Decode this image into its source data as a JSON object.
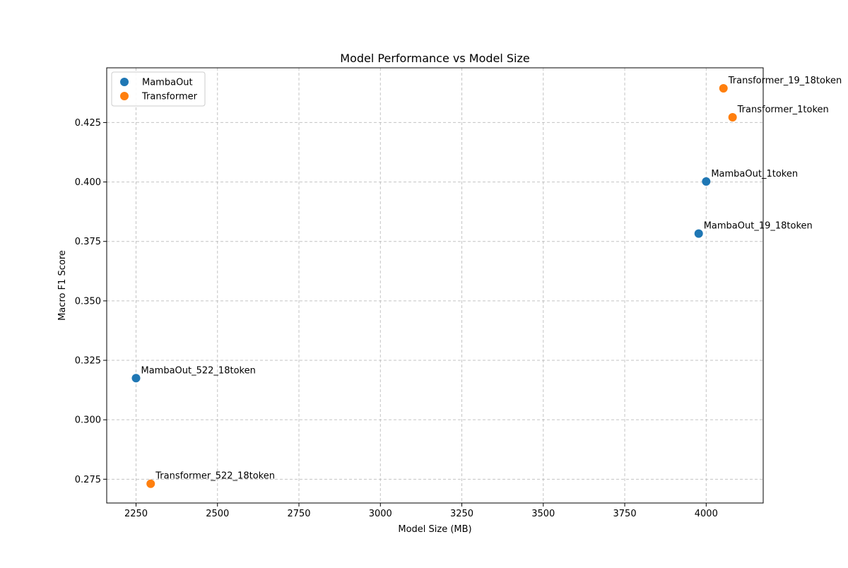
{
  "chart_data": {
    "type": "scatter",
    "title": "Model Performance vs Model Size",
    "xlabel": "Model Size (MB)",
    "ylabel": "Macro F1 Score",
    "xlim": [
      2160,
      4175
    ],
    "ylim": [
      0.265,
      0.448
    ],
    "xticks": [
      2250,
      2500,
      2750,
      3000,
      3250,
      3500,
      3750,
      4000
    ],
    "yticks": [
      0.275,
      0.3,
      0.325,
      0.35,
      0.375,
      0.4,
      0.425
    ],
    "xtick_labels": [
      "2250",
      "2500",
      "2750",
      "3000",
      "3250",
      "3500",
      "3750",
      "4000"
    ],
    "ytick_labels": [
      "0.275",
      "0.300",
      "0.325",
      "0.350",
      "0.375",
      "0.400",
      "0.425"
    ],
    "grid": true,
    "legend_position": "top-left",
    "series": [
      {
        "name": "MambaOut",
        "color": "#1f77b4",
        "points": [
          {
            "x": 2250,
            "y": 0.3175,
            "label": "MambaOut_522_18token"
          },
          {
            "x": 4000,
            "y": 0.4002,
            "label": "MambaOut_1token"
          },
          {
            "x": 3977,
            "y": 0.3783,
            "label": "MambaOut_19_18token"
          }
        ]
      },
      {
        "name": "Transformer",
        "color": "#ff7f0e",
        "points": [
          {
            "x": 2295,
            "y": 0.2731,
            "label": "Transformer_522_18token"
          },
          {
            "x": 4053,
            "y": 0.4394,
            "label": "Transformer_19_18token"
          },
          {
            "x": 4081,
            "y": 0.4272,
            "label": "Transformer_1token"
          }
        ]
      }
    ]
  }
}
